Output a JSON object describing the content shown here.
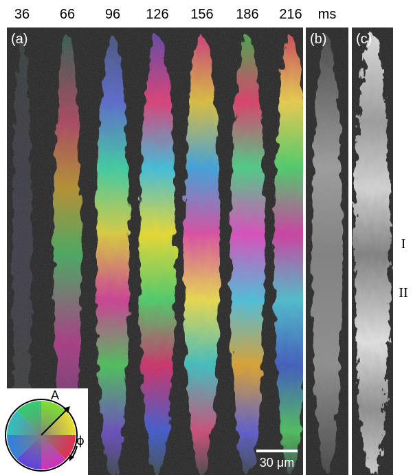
{
  "time_labels": [
    "36",
    "66",
    "96",
    "126",
    "156",
    "186",
    "216",
    "ms"
  ],
  "panels": {
    "a": "(a)",
    "b": "(b)",
    "c": "(c)"
  },
  "regions": {
    "one": "I",
    "two": "II"
  },
  "scale_bar": "30 μm",
  "legend": {
    "amplitude": "A",
    "phase": "ϕ"
  },
  "colors": {
    "background": "#1a1a1a",
    "frame": "#ffffff",
    "text": "#000000"
  }
}
